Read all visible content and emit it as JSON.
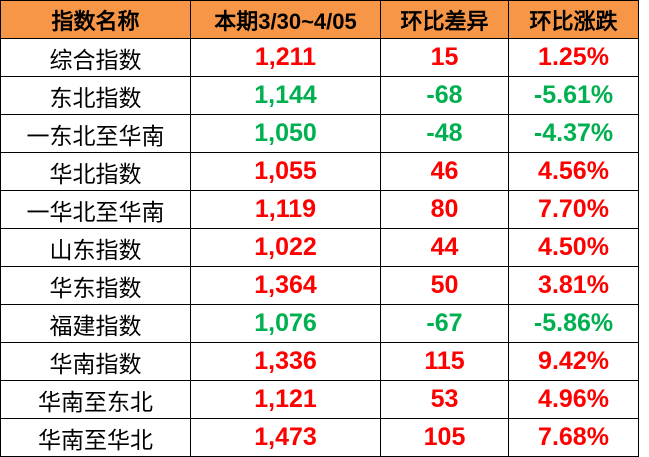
{
  "chart_data": {
    "type": "table",
    "columns": [
      "指数名称",
      "本期3/30~4/05",
      "环比差异",
      "环比涨跌"
    ],
    "rows": [
      {
        "name": "综合指数",
        "value": "1,211",
        "diff": "15",
        "pct": "1.25%",
        "direction": "up"
      },
      {
        "name": "东北指数",
        "value": "1,144",
        "diff": "-68",
        "pct": "-5.61%",
        "direction": "down"
      },
      {
        "name": "一东北至华南",
        "value": "1,050",
        "diff": "-48",
        "pct": "-4.37%",
        "direction": "down"
      },
      {
        "name": "华北指数",
        "value": "1,055",
        "diff": "46",
        "pct": "4.56%",
        "direction": "up"
      },
      {
        "name": "一华北至华南",
        "value": "1,119",
        "diff": "80",
        "pct": "7.70%",
        "direction": "up"
      },
      {
        "name": "山东指数",
        "value": "1,022",
        "diff": "44",
        "pct": "4.50%",
        "direction": "up"
      },
      {
        "name": "华东指数",
        "value": "1,364",
        "diff": "50",
        "pct": "3.81%",
        "direction": "up"
      },
      {
        "name": "福建指数",
        "value": "1,076",
        "diff": "-67",
        "pct": "-5.86%",
        "direction": "down"
      },
      {
        "name": "华南指数",
        "value": "1,336",
        "diff": "115",
        "pct": "9.42%",
        "direction": "up"
      },
      {
        "name": "华南至东北",
        "value": "1,121",
        "diff": "53",
        "pct": "4.96%",
        "direction": "up"
      },
      {
        "name": "华南至华北",
        "value": "1,473",
        "diff": "105",
        "pct": "7.68%",
        "direction": "up"
      }
    ]
  },
  "colors": {
    "header_bg": "#F79646",
    "up": "#FF0000",
    "down": "#00B050",
    "border": "#000000",
    "text": "#000000"
  }
}
